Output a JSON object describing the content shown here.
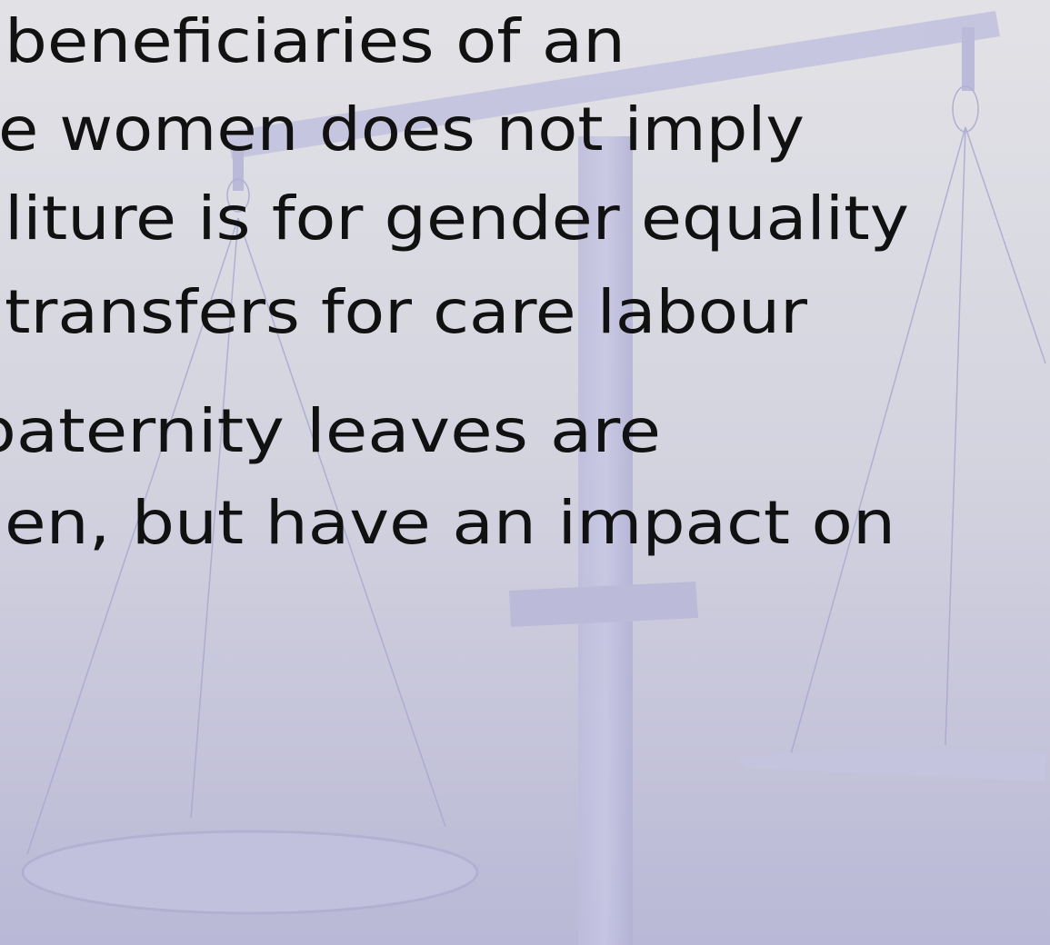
{
  "slide": {
    "lines": [
      "beneficiaries of an",
      "e women does not imply",
      "liture is for gender equality",
      "transfers for care labour",
      "paternity leaves are",
      "en, but have an impact on"
    ]
  }
}
